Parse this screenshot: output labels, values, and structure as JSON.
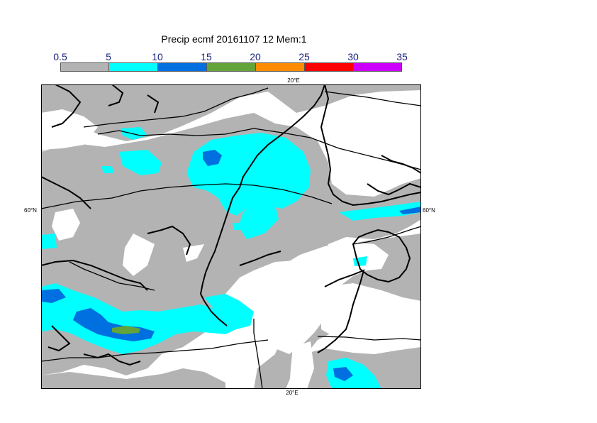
{
  "title": "Precip ecmf 20161107 12 Mem:1",
  "colorbar": {
    "ticks": [
      "0.5",
      "5",
      "10",
      "15",
      "20",
      "25",
      "30",
      "35"
    ],
    "colors": [
      "#b3b3b3",
      "#00ffff",
      "#0070e0",
      "#62a33a",
      "#ff8c00",
      "#ff0000",
      "#cc00ff"
    ]
  },
  "labels": {
    "lon_top": "20°E",
    "lon_bottom": "20°E",
    "lat_left": "60°N",
    "lat_right": "60°N"
  },
  "map_colors": {
    "background": "#ffffff",
    "gray": "#b3b3b3",
    "cyan": "#00ffff",
    "blue": "#0070e0",
    "green": "#62a33a",
    "coast": "#000000",
    "border": "#000000"
  }
}
